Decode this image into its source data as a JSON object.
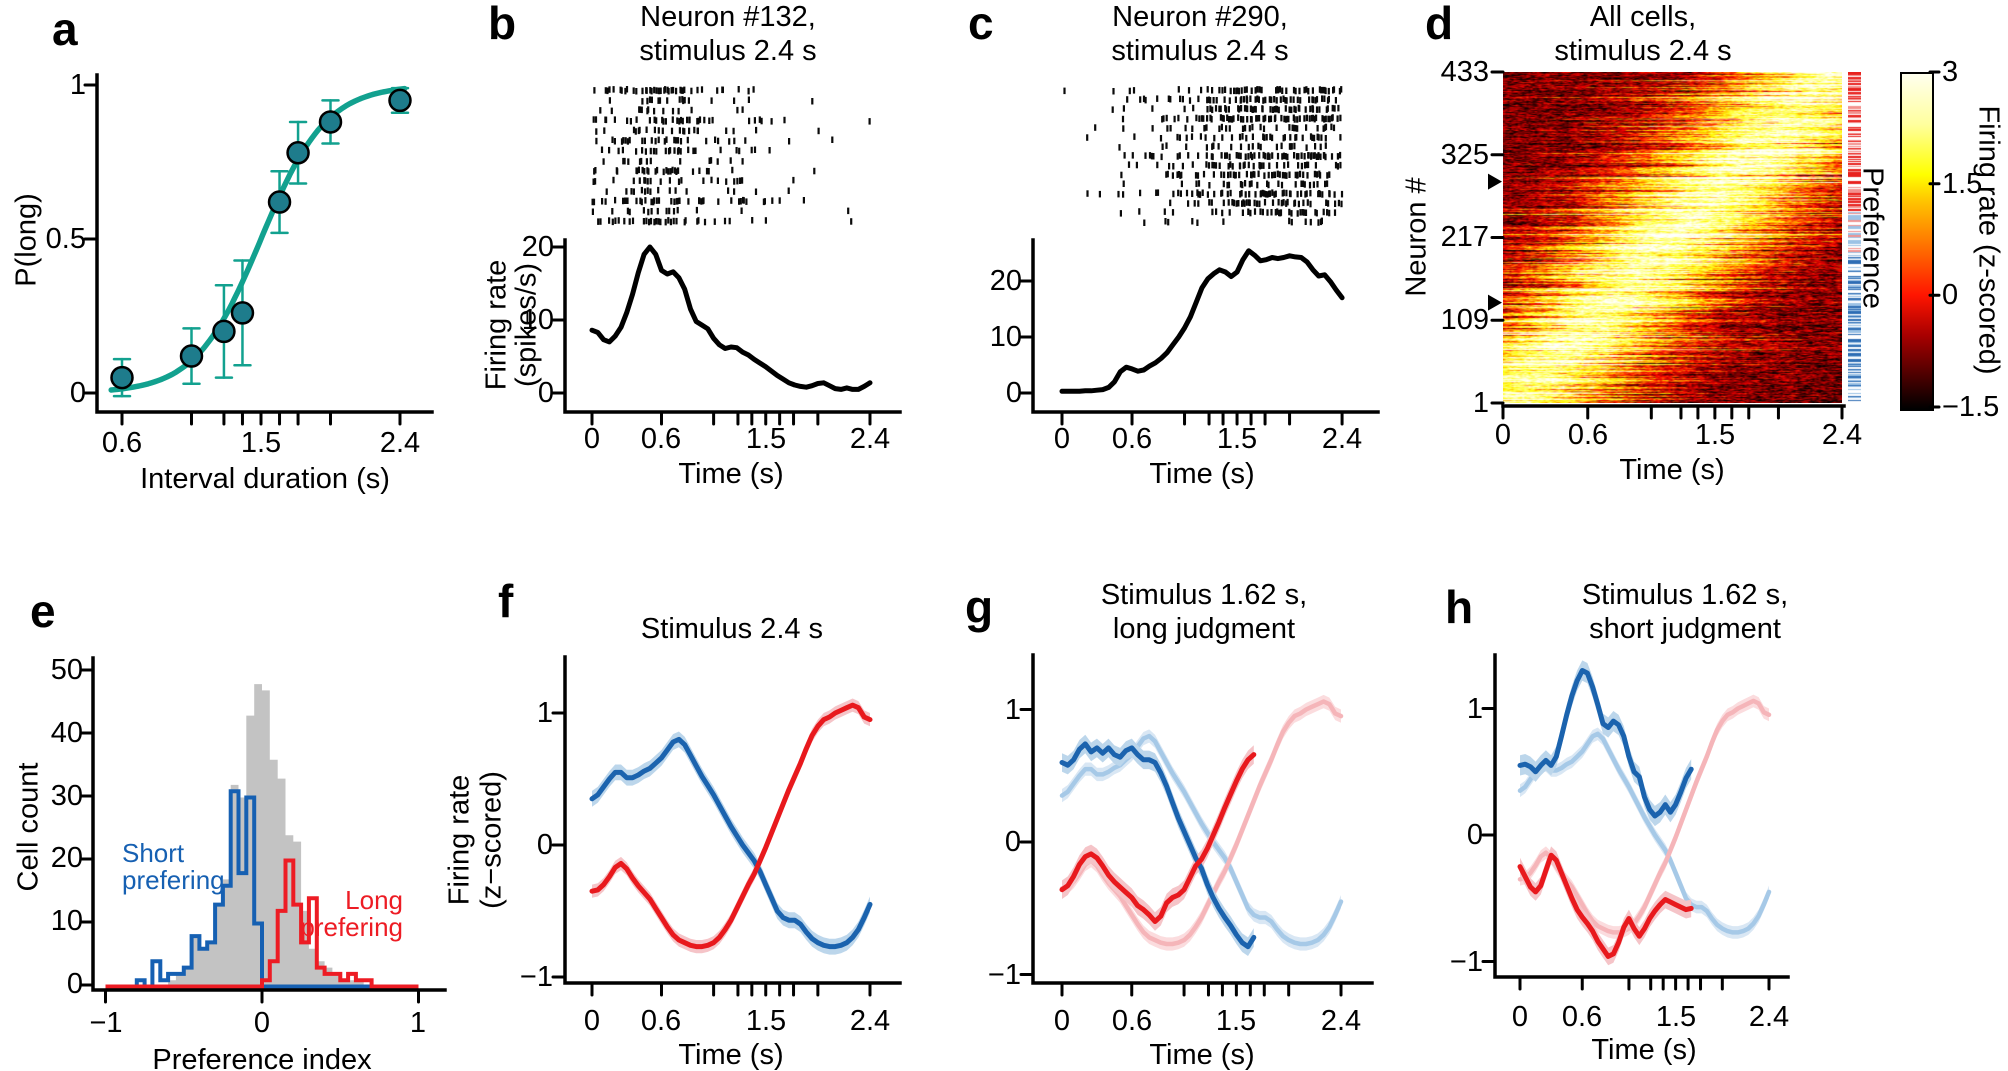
{
  "figure": {
    "background": "#ffffff",
    "colors": {
      "teal_curve": "#12a18f",
      "teal_marker": "#1e7c8c",
      "trace_black": "#000000",
      "blue": "#1b63ae",
      "blue_band": "#bcd6eb",
      "blue_light": "#a6c9e7",
      "blue_light_band": "#d9e7f4",
      "red": "#e8191d",
      "red_band": "#f5c4c8",
      "red_light": "#f5b5b9",
      "red_light_band": "#fbdcde",
      "hist_gray": "#c3c3c3",
      "hist_blue": "#1660b2",
      "hist_red": "#ed1c24",
      "heat_colormap_stops": [
        "#000000",
        "#ff0000",
        "#ffff00",
        "#ffffff"
      ],
      "pref_long_red": "#e8211d",
      "pref_long_red_light": "#f2928f",
      "pref_short_blue": "#2e6db4",
      "pref_short_blue_light": "#9cc2e5"
    },
    "panels": {
      "a": {
        "letter": "a",
        "ylabel": "P(long)",
        "xlabel": "Interval duration (s)",
        "yticks": [
          "1",
          "0.5",
          "0"
        ],
        "xticks": [
          "0.6",
          "1.5",
          "2.4"
        ]
      },
      "b": {
        "letter": "b",
        "title1": "Neuron #132,",
        "title2": "stimulus 2.4 s",
        "ylabel1": "Firing rate",
        "ylabel2": "(spikes/s)",
        "yticks": [
          "20",
          "10",
          "0"
        ],
        "xticks": [
          "0",
          "0.6",
          "1.5",
          "2.4"
        ],
        "xlabel": "Time (s)"
      },
      "c": {
        "letter": "c",
        "title1": "Neuron #290,",
        "title2": "stimulus 2.4 s",
        "yticks": [
          "20",
          "10",
          "0"
        ],
        "xticks": [
          "0",
          "0.6",
          "1.5",
          "2.4"
        ],
        "xlabel": "Time (s)"
      },
      "d": {
        "letter": "d",
        "title1": "All cells,",
        "title2": "stimulus 2.4 s",
        "ylabel": "Neuron #",
        "yticks": [
          "433",
          "325",
          "217",
          "109",
          "1"
        ],
        "xticks": [
          "0",
          "0.6",
          "1.5",
          "2.4"
        ],
        "xlabel": "Time (s)",
        "strip_label": "Preference",
        "colorbar_label": "Firing rate (z-scored)",
        "colorbar_ticks": [
          "3",
          "1.5",
          "0",
          "−1.5"
        ]
      },
      "e": {
        "letter": "e",
        "ylabel": "Cell count",
        "xlabel": "Preference index",
        "yticks": [
          "50",
          "40",
          "30",
          "20",
          "10",
          "0"
        ],
        "xticks": [
          "−1",
          "0",
          "1"
        ],
        "ann_short1": "Short",
        "ann_short2": "prefering",
        "ann_long1": "Long",
        "ann_long2": "prefering"
      },
      "f": {
        "letter": "f",
        "title": "Stimulus 2.4 s",
        "ylabel1": "Firing rate",
        "ylabel2": "(z−scored)",
        "yticks": [
          "1",
          "0",
          "−1"
        ],
        "xticks": [
          "0",
          "0.6",
          "1.5",
          "2.4"
        ],
        "xlabel": "Time (s)"
      },
      "g": {
        "letter": "g",
        "title1": "Stimulus 1.62 s,",
        "title2": "long judgment",
        "yticks": [
          "1",
          "0",
          "−1"
        ],
        "xticks": [
          "0",
          "0.6",
          "1.5",
          "2.4"
        ],
        "xlabel": "Time (s)"
      },
      "h": {
        "letter": "h",
        "title1": "Stimulus 1.62 s,",
        "title2": "short judgment",
        "yticks": [
          "1",
          "0",
          "−1"
        ],
        "xticks": [
          "0",
          "0.6",
          "1.5",
          "2.4"
        ],
        "xlabel": "Time (s)"
      }
    }
  },
  "chart_data": [
    {
      "panel": "a",
      "type": "scatter",
      "xlabel": "Interval duration (s)",
      "ylabel": "P(long)",
      "xlim": [
        0.6,
        2.4
      ],
      "ylim": [
        0,
        1
      ],
      "x": [
        0.6,
        1.05,
        1.26,
        1.38,
        1.62,
        1.74,
        1.95,
        2.4
      ],
      "y": [
        0.05,
        0.12,
        0.2,
        0.26,
        0.62,
        0.78,
        0.88,
        0.95
      ],
      "yerr": [
        0.06,
        0.09,
        0.15,
        0.17,
        0.1,
        0.1,
        0.07,
        0.04
      ],
      "fit": {
        "type": "logistic",
        "midpoint": 1.5,
        "slope": 0.21
      },
      "xticks_major": [
        0.6,
        1.5,
        2.4
      ],
      "xticks_minor": [
        1.05,
        1.26,
        1.38,
        1.62,
        1.74,
        1.95
      ],
      "yticks": [
        1,
        0.5,
        0
      ]
    },
    {
      "panel": "b",
      "type": "line+raster",
      "title": "Neuron #132, stimulus 2.4 s",
      "xlabel": "Time (s)",
      "ylabel": "Firing rate (spikes/s)",
      "t_step": 0.05,
      "t_range": [
        0,
        2.4
      ],
      "raster_trials": 14,
      "ylim": [
        0,
        20
      ],
      "yticks": [
        20,
        10,
        0
      ],
      "xticks_major": [
        0,
        0.6,
        1.5,
        2.4
      ],
      "xticks_minor": [
        1.05,
        1.26,
        1.38,
        1.62,
        1.74,
        1.95
      ],
      "firing_rate": [
        8.6,
        8.3,
        7.3,
        7.0,
        7.8,
        9.0,
        11.0,
        13.5,
        16.5,
        19.0,
        20.0,
        19.0,
        16.8,
        16.3,
        16.6,
        15.8,
        14.2,
        11.5,
        9.8,
        9.3,
        8.8,
        7.5,
        6.6,
        6.1,
        6.3,
        6.2,
        5.6,
        5.2,
        4.6,
        4.1,
        3.6,
        3.0,
        2.4,
        1.9,
        1.4,
        1.1,
        0.9,
        0.8,
        1.0,
        1.3,
        1.4,
        1.0,
        0.6,
        0.5,
        0.7,
        0.5,
        0.5,
        0.9,
        1.4
      ]
    },
    {
      "panel": "c",
      "type": "line+raster",
      "title": "Neuron #290, stimulus 2.4 s",
      "xlabel": "Time (s)",
      "t_step": 0.05,
      "t_range": [
        0,
        2.4
      ],
      "raster_trials": 15,
      "ylim": [
        0,
        26
      ],
      "yticks": [
        20,
        10,
        0
      ],
      "xticks_major": [
        0,
        0.6,
        1.5,
        2.4
      ],
      "xticks_minor": [
        1.05,
        1.26,
        1.38,
        1.62,
        1.74,
        1.95
      ],
      "firing_rate": [
        0.3,
        0.3,
        0.3,
        0.3,
        0.4,
        0.4,
        0.5,
        0.6,
        1.0,
        2.0,
        3.8,
        4.6,
        4.3,
        3.9,
        4.1,
        4.8,
        5.4,
        6.2,
        7.2,
        8.6,
        10.0,
        11.6,
        13.6,
        16.2,
        18.8,
        20.4,
        21.3,
        22.0,
        21.6,
        20.8,
        21.6,
        23.8,
        25.4,
        24.6,
        23.6,
        23.8,
        24.2,
        24.0,
        24.2,
        24.5,
        24.3,
        24.2,
        23.4,
        22.0,
        20.9,
        21.1,
        19.9,
        18.4,
        17.0
      ]
    },
    {
      "panel": "d",
      "type": "heatmap",
      "title": "All cells, stimulus 2.4 s",
      "xlabel": "Time (s)",
      "ylabel": "Neuron #",
      "rows": 433,
      "time_range": [
        0,
        2.4
      ],
      "yticks": [
        433,
        325,
        217,
        109,
        1
      ],
      "xticks_major": [
        0,
        0.6,
        1.5,
        2.4
      ],
      "xticks_minor": [
        1.05,
        1.26,
        1.38,
        1.62,
        1.74,
        1.95
      ],
      "value_range": [
        -1.5,
        3
      ],
      "colorbar_ticks": [
        3,
        1.5,
        0,
        -1.5
      ],
      "colorbar_label": "Firing rate (z-scored)",
      "colormap": "hot",
      "marked_neurons": [
        290,
        132
      ],
      "sorting": "neurons ordered by time of peak firing; short-preferring (early, bottom) to long-preferring (late, top)",
      "preference_strip": {
        "label": "Preference",
        "top_group": "long (red)",
        "bottom_group": "short (blue)"
      }
    },
    {
      "panel": "e",
      "type": "histogram",
      "xlabel": "Preference index",
      "ylabel": "Cell count",
      "bin_start": -1,
      "bin_width": 0.05,
      "yticks": [
        0,
        10,
        20,
        30,
        40,
        50
      ],
      "xticks": [
        -1,
        0,
        1
      ],
      "series": [
        {
          "name": "all cells (gray)",
          "values": [
            0,
            0,
            0,
            0,
            0,
            0,
            0,
            0,
            1,
            2,
            3,
            8,
            6,
            7,
            13,
            17,
            32,
            30,
            43,
            48,
            47,
            36,
            33,
            24,
            23,
            12,
            6,
            4,
            3,
            2,
            1,
            1,
            1,
            0,
            0,
            0,
            0,
            0,
            0,
            0
          ]
        },
        {
          "name": "Short prefering (blue)",
          "values": [
            0,
            0,
            0,
            0,
            1,
            0,
            4,
            1,
            2,
            2,
            3,
            8,
            6,
            7,
            13,
            16,
            31,
            18,
            30,
            10,
            0,
            0,
            0,
            0,
            0,
            0,
            0,
            0,
            0,
            0,
            0,
            0,
            0,
            0,
            0,
            0,
            0,
            0,
            0,
            0
          ]
        },
        {
          "name": "Long prefering (red)",
          "values": [
            0,
            0,
            0,
            0,
            0,
            0,
            0,
            0,
            0,
            0,
            0,
            0,
            0,
            0,
            0,
            0,
            0,
            0,
            0,
            0,
            1,
            4,
            12,
            20,
            13,
            7,
            14,
            3,
            2,
            2,
            1,
            2,
            1,
            1,
            0,
            0,
            0,
            0,
            0,
            0
          ]
        }
      ]
    },
    {
      "panel": "f",
      "type": "line",
      "title": "Stimulus 2.4 s",
      "xlabel": "Time (s)",
      "ylabel": "Firing rate (z-scored)",
      "t_step": 0.05,
      "t_range": [
        0,
        2.4
      ],
      "ylim": [
        -1,
        1
      ],
      "xticks_major": [
        0,
        0.6,
        1.5,
        2.4
      ],
      "xticks_minor": [
        1.05,
        1.26,
        1.38,
        1.62,
        1.74,
        1.95
      ],
      "series": [
        {
          "name": "short-preferring cells",
          "err": 0.06,
          "values": [
            0.35,
            0.38,
            0.44,
            0.5,
            0.55,
            0.55,
            0.51,
            0.51,
            0.53,
            0.56,
            0.58,
            0.62,
            0.66,
            0.72,
            0.78,
            0.8,
            0.76,
            0.68,
            0.6,
            0.52,
            0.45,
            0.38,
            0.3,
            0.22,
            0.14,
            0.07,
            0.0,
            -0.06,
            -0.12,
            -0.2,
            -0.3,
            -0.4,
            -0.5,
            -0.55,
            -0.57,
            -0.57,
            -0.6,
            -0.66,
            -0.71,
            -0.74,
            -0.76,
            -0.77,
            -0.77,
            -0.76,
            -0.74,
            -0.7,
            -0.64,
            -0.55,
            -0.45
          ]
        },
        {
          "name": "long-preferring cells",
          "err": 0.05,
          "values": [
            -0.35,
            -0.34,
            -0.3,
            -0.24,
            -0.17,
            -0.14,
            -0.18,
            -0.25,
            -0.31,
            -0.36,
            -0.41,
            -0.48,
            -0.55,
            -0.62,
            -0.68,
            -0.72,
            -0.74,
            -0.76,
            -0.77,
            -0.77,
            -0.76,
            -0.74,
            -0.7,
            -0.64,
            -0.57,
            -0.48,
            -0.39,
            -0.3,
            -0.22,
            -0.12,
            -0.02,
            0.09,
            0.2,
            0.31,
            0.42,
            0.52,
            0.62,
            0.73,
            0.83,
            0.9,
            0.95,
            0.97,
            1.0,
            1.02,
            1.04,
            1.06,
            1.04,
            0.97,
            0.95
          ]
        }
      ]
    },
    {
      "panel": "g",
      "type": "line",
      "title": "Stimulus 1.62 s, long judgment",
      "xlabel": "Time (s)",
      "t_step": 0.05,
      "t_range": [
        0,
        1.65
      ],
      "ylim": [
        -1,
        1
      ],
      "xticks_major": [
        0,
        0.6,
        1.5,
        2.4
      ],
      "xticks_minor": [
        1.05,
        1.26,
        1.38,
        1.62,
        1.74,
        1.95
      ],
      "light_traces_from_panel": "f",
      "series": [
        {
          "name": "short-preferring, 1.62 s long judgment",
          "err": 0.07,
          "values": [
            0.6,
            0.58,
            0.62,
            0.7,
            0.74,
            0.68,
            0.71,
            0.67,
            0.71,
            0.66,
            0.64,
            0.69,
            0.71,
            0.66,
            0.62,
            0.62,
            0.6,
            0.52,
            0.42,
            0.3,
            0.18,
            0.08,
            -0.02,
            -0.12,
            -0.2,
            -0.32,
            -0.42,
            -0.5,
            -0.57,
            -0.63,
            -0.7,
            -0.76,
            -0.79,
            -0.72
          ]
        },
        {
          "name": "long-preferring, 1.62 s long judgment",
          "err": 0.07,
          "values": [
            -0.36,
            -0.33,
            -0.26,
            -0.17,
            -0.11,
            -0.09,
            -0.12,
            -0.18,
            -0.25,
            -0.3,
            -0.34,
            -0.38,
            -0.42,
            -0.48,
            -0.51,
            -0.55,
            -0.6,
            -0.56,
            -0.46,
            -0.42,
            -0.4,
            -0.36,
            -0.27,
            -0.18,
            -0.13,
            -0.05,
            0.05,
            0.15,
            0.26,
            0.36,
            0.46,
            0.55,
            0.62,
            0.66
          ]
        }
      ]
    },
    {
      "panel": "h",
      "type": "line",
      "title": "Stimulus 1.62 s, short judgment",
      "xlabel": "Time (s)",
      "t_step": 0.05,
      "t_range": [
        0,
        1.65
      ],
      "ylim": [
        -1,
        1
      ],
      "xticks_major": [
        0,
        0.6,
        1.5,
        2.4
      ],
      "xticks_minor": [
        1.05,
        1.26,
        1.38,
        1.62,
        1.74,
        1.95
      ],
      "light_traces_from_panel": "f",
      "series": [
        {
          "name": "short-preferring, 1.62 s short judgment",
          "err": 0.08,
          "values": [
            0.55,
            0.56,
            0.54,
            0.5,
            0.55,
            0.59,
            0.55,
            0.62,
            0.78,
            0.95,
            1.1,
            1.22,
            1.3,
            1.28,
            1.17,
            1.03,
            0.88,
            0.85,
            0.9,
            0.87,
            0.78,
            0.62,
            0.5,
            0.46,
            0.3,
            0.2,
            0.15,
            0.18,
            0.24,
            0.18,
            0.24,
            0.34,
            0.45,
            0.52
          ]
        },
        {
          "name": "long-preferring, 1.62 s short judgment",
          "err": 0.07,
          "values": [
            -0.25,
            -0.33,
            -0.41,
            -0.45,
            -0.4,
            -0.28,
            -0.16,
            -0.2,
            -0.3,
            -0.4,
            -0.5,
            -0.59,
            -0.65,
            -0.7,
            -0.76,
            -0.84,
            -0.9,
            -0.96,
            -0.94,
            -0.85,
            -0.73,
            -0.66,
            -0.74,
            -0.8,
            -0.74,
            -0.66,
            -0.6,
            -0.55,
            -0.51,
            -0.53,
            -0.55,
            -0.57,
            -0.59,
            -0.58
          ]
        }
      ]
    }
  ]
}
